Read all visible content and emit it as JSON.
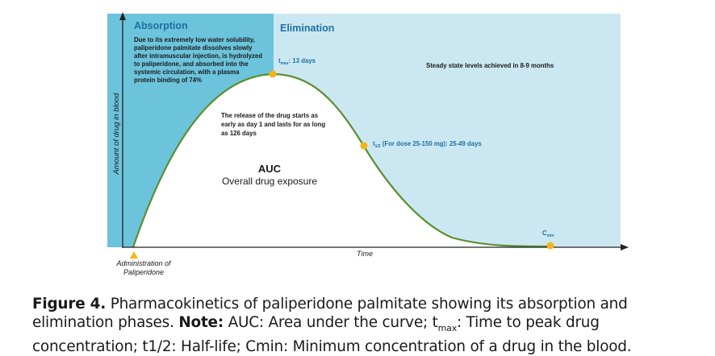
{
  "figure": {
    "panels": {
      "absorption_title": "Absorption",
      "elimination_title": "Elimination",
      "absorption_text": [
        "Due to its extremely low water solubility,",
        "paliperidone palmitate dissolves slowly",
        "after intramuscular injection, is hydrolyzed",
        "to paliperidone, and absorbed into the",
        "systemic circulation, with a plasma",
        "protein binding of 74%"
      ],
      "steady_state": "Steady state levels achieved in 8-9 months",
      "release_text": [
        "The release of the drug starts as",
        "early as day 1 and lasts for as long",
        "as 126 days"
      ],
      "auc_title": "AUC",
      "auc_subtitle": "Overall drug exposure"
    },
    "annotations": {
      "tmax_label_main": "t",
      "tmax_label_sub": "max",
      "tmax_value": ": 13 days",
      "thalf_label_main": "t",
      "thalf_label_sub": "1/2",
      "thalf_value": " (For dose 25-150 mg): 25-49 days",
      "cmin_label_main": "C",
      "cmin_label_sub": "min"
    },
    "axes": {
      "ylabel": "Amount of drug in blood",
      "xlabel": "Time",
      "admin_line1": "Administration of",
      "admin_line2": "Paliperidone"
    },
    "colors": {
      "absorption_bg": "#6cc3dc",
      "elimination_bg": "#cbe8f2",
      "curve": "#5a8f2e",
      "marker": "#f4b41a",
      "title_blue": "#1f6ea5",
      "text": "#1a1a1a"
    }
  },
  "caption": {
    "figure_label": "Figure 4.",
    "text1": " Pharmacokinetics of paliperidone palmitate showing its absorption and elimination phases. ",
    "note_label": "Note:",
    "text2": " AUC: Area under the curve; t",
    "tmax_sub": "max",
    "text3": ": Time to peak drug concentration; t1/2: Half-life; Cmin: Minimum concentration of a drug in the blood."
  }
}
